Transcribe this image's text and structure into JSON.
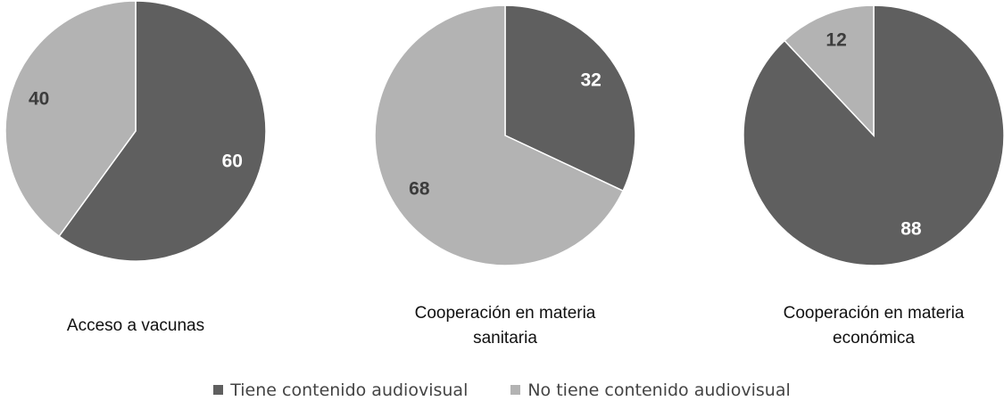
{
  "chart_data": [
    {
      "type": "pie",
      "title": "Acceso a vacunas",
      "categories": [
        "Tiene contenido audiovisual",
        "No tiene contenido audiovisual"
      ],
      "values": [
        60,
        40
      ],
      "colors": [
        "#5f5f5f",
        "#b3b3b3"
      ]
    },
    {
      "type": "pie",
      "title": "Cooperación en materia sanitaria",
      "categories": [
        "Tiene contenido audiovisual",
        "No tiene contenido audiovisual"
      ],
      "values": [
        32,
        68
      ],
      "colors": [
        "#5f5f5f",
        "#b3b3b3"
      ]
    },
    {
      "type": "pie",
      "title": "Cooperación en materia económica",
      "categories": [
        "Tiene contenido audiovisual",
        "No tiene contenido audiovisual"
      ],
      "values": [
        88,
        12
      ],
      "colors": [
        "#5f5f5f",
        "#b3b3b3"
      ]
    }
  ]
}
